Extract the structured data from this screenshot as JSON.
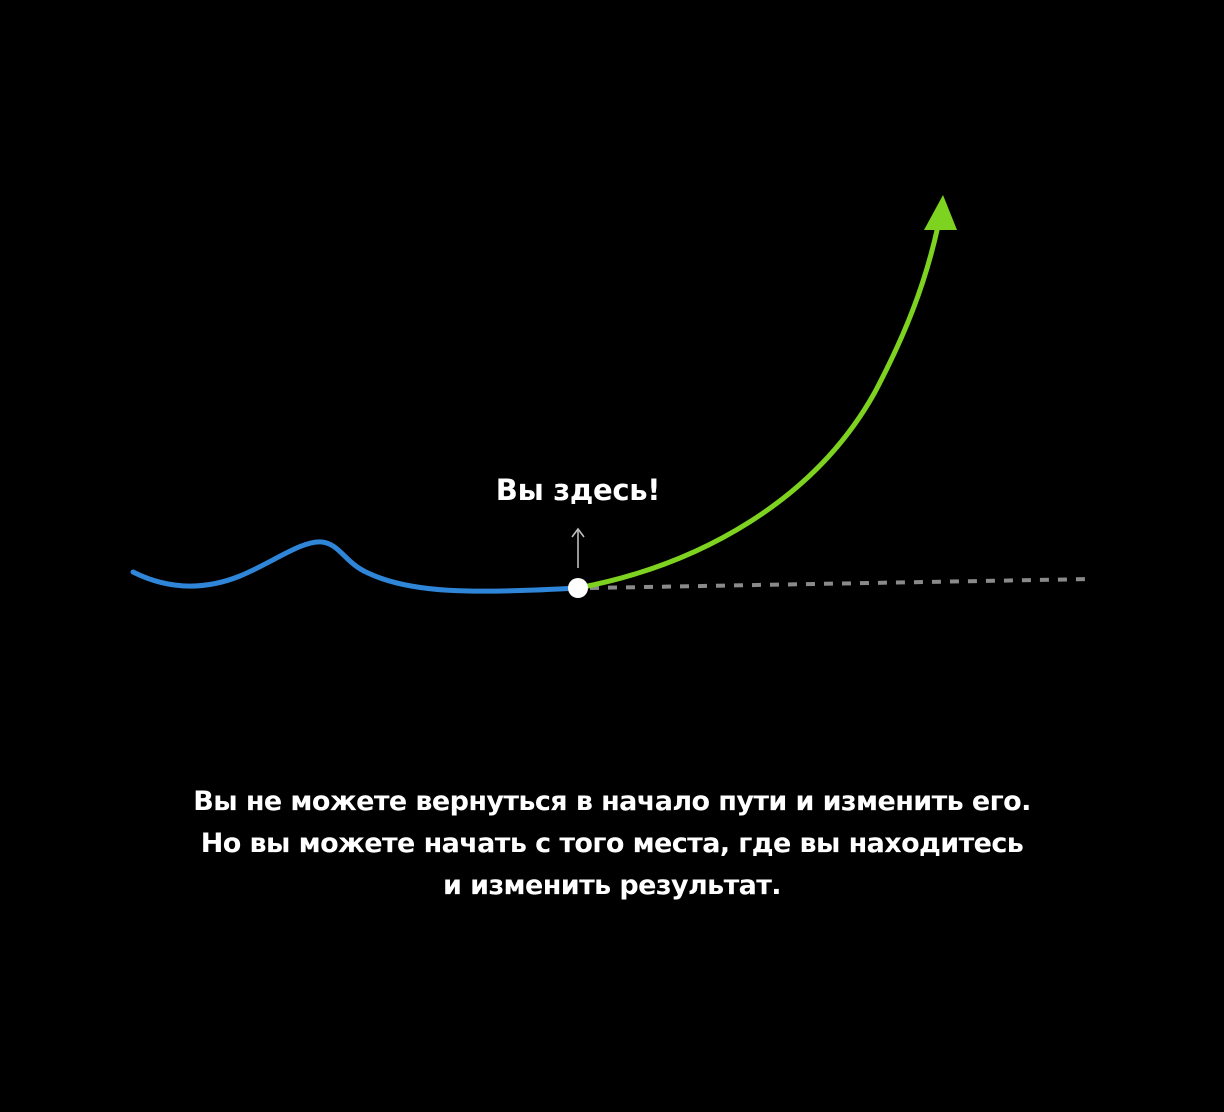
{
  "diagram": {
    "marker_label": "Вы здесь!",
    "colors": {
      "background": "#000000",
      "past_path": "#2f86d8",
      "future_path": "#7ed321",
      "flat_path": "#8a8a8a",
      "marker": "#ffffff",
      "pointer_arrow": "#bdbdbd",
      "text": "#ffffff"
    },
    "icons": [
      "up-arrow-icon",
      "arrowhead-icon"
    ]
  },
  "caption": {
    "line1": "Вы не можете вернуться в начало пути и изменить его.",
    "line2": "Но вы можете начать с того места, где вы находитесь",
    "line3": "и изменить результат."
  }
}
